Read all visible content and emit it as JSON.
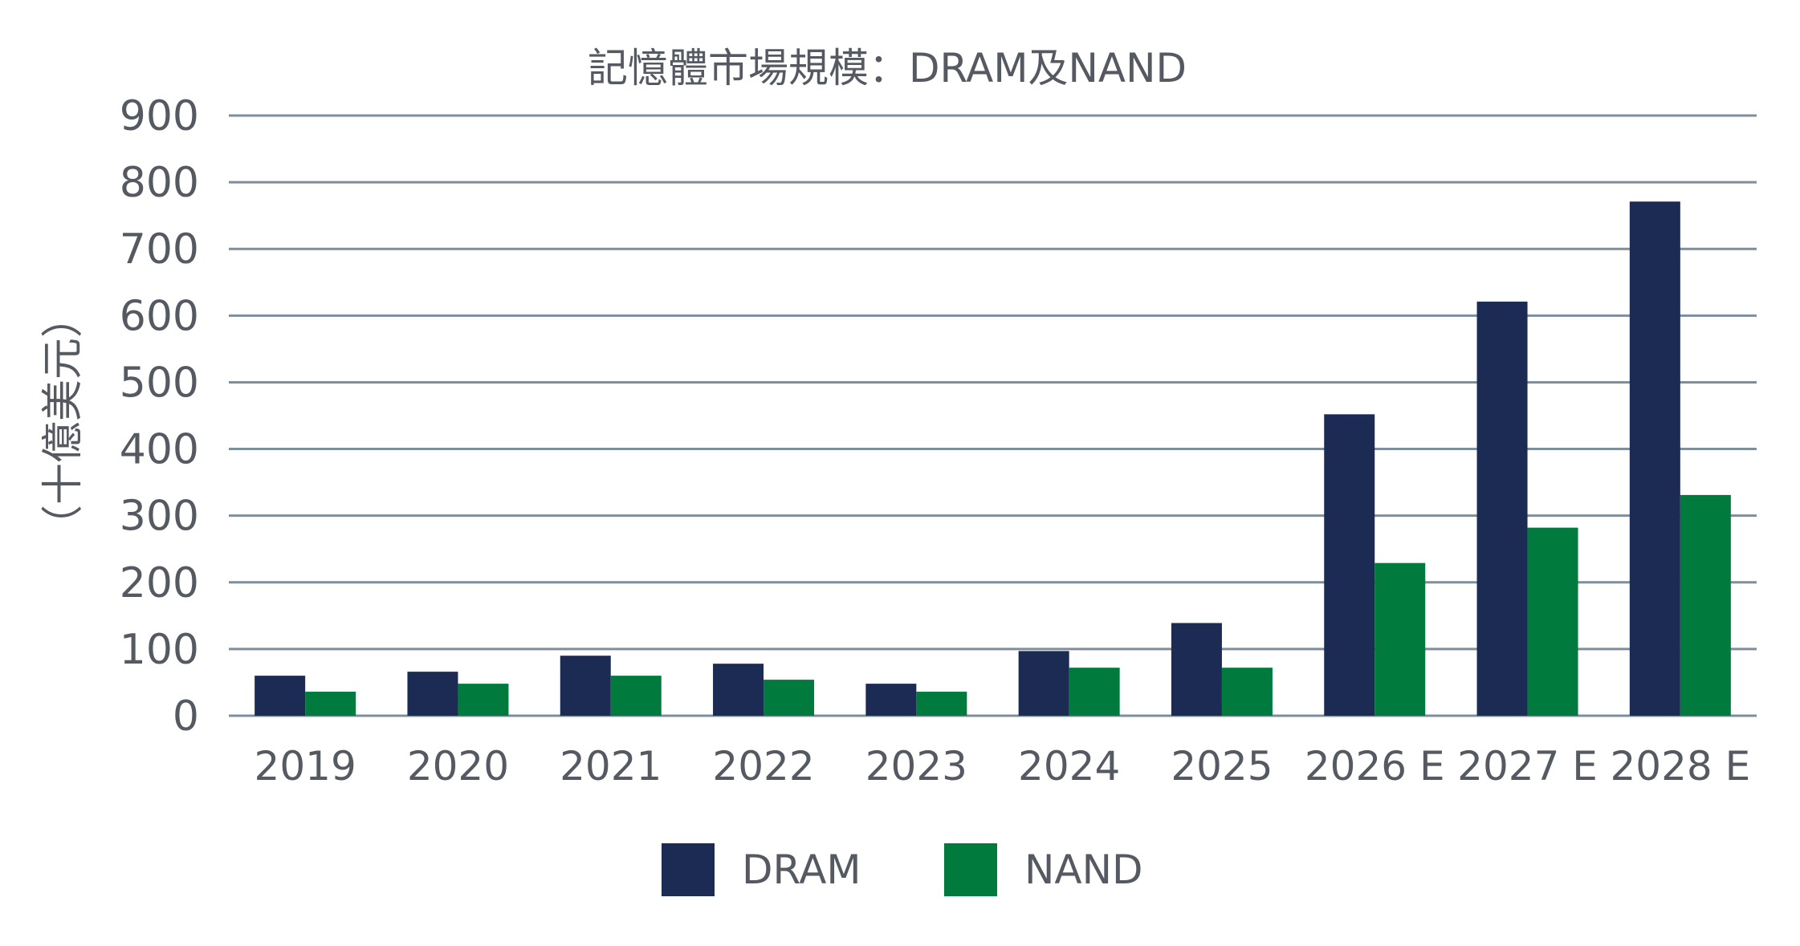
{
  "chart_data": {
    "type": "bar",
    "title": "記憶體市場規模：DRAM及NAND",
    "xlabel": "",
    "ylabel": "（十億美元）",
    "ylim": [
      0,
      900
    ],
    "yticks": [
      0,
      100,
      200,
      300,
      400,
      500,
      600,
      700,
      800,
      900
    ],
    "grid": true,
    "legend_position": "bottom",
    "categories": [
      "2019",
      "2020",
      "2021",
      "2022",
      "2023",
      "2024",
      "2025",
      "2026 E",
      "2027 E",
      "2028 E"
    ],
    "series": [
      {
        "name": "DRAM",
        "color": "#1c2b54",
        "values": [
          60,
          66,
          90,
          78,
          48,
          97,
          139,
          452,
          621,
          771
        ]
      },
      {
        "name": "NAND",
        "color": "#007a3d",
        "values": [
          36,
          48,
          60,
          54,
          36,
          72,
          72,
          229,
          282,
          331
        ]
      }
    ]
  }
}
